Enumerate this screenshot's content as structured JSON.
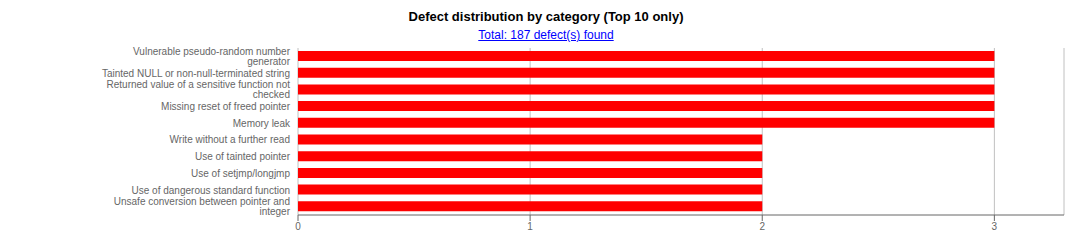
{
  "chart_data": {
    "type": "bar",
    "orientation": "horizontal",
    "title": "Defect distribution by category (Top 10 only)",
    "subtitle": "Total: 187 defect(s) found",
    "categories": [
      "Vulnerable pseudo-random number generator",
      "Tainted NULL or non-null-terminated string",
      "Returned value of a sensitive function not checked",
      "Missing reset of freed pointer",
      "Memory leak",
      "Write without a further read",
      "Use of tainted pointer",
      "Use of setjmp/longjmp",
      "Use of dangerous standard function",
      "Unsafe conversion between pointer and integer"
    ],
    "values": [
      3,
      3,
      3,
      3,
      3,
      2,
      2,
      2,
      2,
      2
    ],
    "color": "#ff0000",
    "xlim": [
      0,
      3.3
    ],
    "xticks": [
      0,
      1,
      2,
      3
    ],
    "grid": true
  }
}
